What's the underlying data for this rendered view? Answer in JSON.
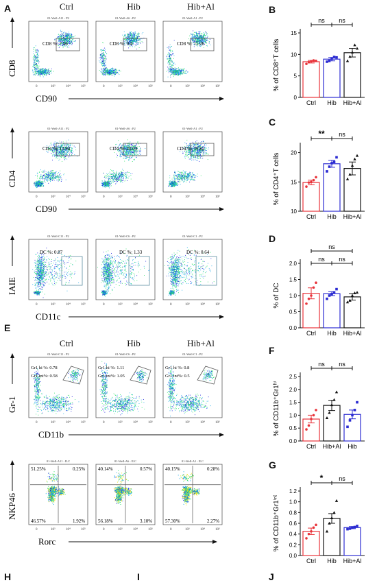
{
  "panels": {
    "A": "A",
    "B": "B",
    "C": "C",
    "D": "D",
    "E": "E",
    "F": "F",
    "G": "G",
    "H": "H",
    "I": "I",
    "J": "J"
  },
  "headers_top": [
    "Ctrl",
    "Hib",
    "Hib+Al"
  ],
  "headers_mid": [
    "Ctrl",
    "Hib",
    "Hib+Al"
  ],
  "flow_rows": [
    {
      "ylabel": "CD8",
      "xlabel": "CD90",
      "plots": [
        {
          "title": "01-Well-A11 : P2",
          "gate": "CD8 %: 7.56"
        },
        {
          "title": "01-Well-A6 : P2",
          "gate": "CD8 %: 9.4"
        },
        {
          "title": "01-Well-A1 : P2",
          "gate": "CD8 %: 11.26"
        }
      ]
    },
    {
      "ylabel": "CD4",
      "xlabel": "CD90",
      "plots": [
        {
          "title": "01-Well-A11 : P2",
          "gate": "CD4 %: 13.94"
        },
        {
          "title": "01-Well-A6 : P2",
          "gate": "CD4 %: 20.03"
        },
        {
          "title": "01-Well-A1 : P2",
          "gate": "CD4 %: 19.82"
        }
      ]
    },
    {
      "ylabel": "IAIE",
      "xlabel": "CD11c",
      "plots": [
        {
          "title": "01-Well-C11 : P2",
          "gate": "DC %: 0.87"
        },
        {
          "title": "01-Well-C6 : P2",
          "gate": "DC %: 1.33"
        },
        {
          "title": "01-Well-C1 : P2",
          "gate": "DC %: 0.64"
        }
      ]
    },
    {
      "ylabel": "Gr-1",
      "xlabel": "CD11b",
      "plots": [
        {
          "title": "01-Well-C11 : P2",
          "gate": "Gr1 hi %: 0.78",
          "gate2": "Gr1 int%: 0.58"
        },
        {
          "title": "01-Well-C6 : P2",
          "gate": "Gr1 hi %: 1.11",
          "gate2": "Gr1 int%: 1.05"
        },
        {
          "title": "01-Well-C1 : P2",
          "gate": "Gr1 hi %: 0.8",
          "gate2": "Gr1 int%: 0.5"
        }
      ]
    },
    {
      "ylabel": "NKP46",
      "xlabel": "Rorc",
      "plots": [
        {
          "title": "01-Well-A11 : ILC",
          "q": [
            "51.25%",
            "0.25%",
            "46.57%",
            "1.92%"
          ]
        },
        {
          "title": "01-Well-A6 : ILC",
          "q": [
            "40.14%",
            "0.57%",
            "56.18%",
            "3.10%"
          ]
        },
        {
          "title": "01-Well-A1 : ILC",
          "q": [
            "40.15%",
            "0.28%",
            "57.30%",
            "2.27%"
          ]
        }
      ]
    }
  ],
  "axis_ticks": [
    "0",
    "10³",
    "10⁴",
    "10⁵"
  ],
  "chart_data": [
    {
      "id": "B",
      "type": "bar",
      "categories": [
        "Ctrl",
        "Hib",
        "Hib+Al"
      ],
      "values": [
        8.3,
        8.9,
        10.4
      ],
      "errors": [
        0.3,
        0.4,
        1.0
      ],
      "points": [
        [
          7.8,
          8.2,
          8.4,
          8.6,
          8.5
        ],
        [
          8.3,
          8.5,
          9.0,
          9.4,
          9.3
        ],
        [
          8.5,
          9.5,
          10.5,
          12.2,
          11.4
        ]
      ],
      "ylabel": "% of  CD8⁺T cells",
      "ylim": [
        0,
        15
      ],
      "yticks": [
        0,
        5,
        10,
        15
      ],
      "sig": [
        {
          "from": 0,
          "to": 1,
          "label": "ns"
        },
        {
          "from": 1,
          "to": 2,
          "label": "ns"
        }
      ],
      "colors": [
        "#e8333a",
        "#2b2bd1",
        "#111111"
      ]
    },
    {
      "id": "C",
      "type": "bar",
      "categories": [
        "Ctrl",
        "Hib",
        "Hib+Al"
      ],
      "values": [
        14.9,
        18.1,
        17.3
      ],
      "errors": [
        0.4,
        0.6,
        1.1
      ],
      "points": [
        [
          14.2,
          14.9,
          15.0,
          15.3,
          15.8
        ],
        [
          16.8,
          17.6,
          18.2,
          18.4,
          19.2
        ],
        [
          15.5,
          16.3,
          17.8,
          18.9,
          19.5
        ]
      ],
      "ylabel": "% of  CD4⁺T cells",
      "ylim": [
        10,
        21
      ],
      "yticks": [
        10,
        15,
        20
      ],
      "sig": [
        {
          "from": 0,
          "to": 1,
          "label": "**"
        },
        {
          "from": 1,
          "to": 2,
          "label": "ns"
        }
      ],
      "colors": [
        "#e8333a",
        "#2b2bd1",
        "#111111"
      ]
    },
    {
      "id": "D",
      "type": "bar",
      "categories": [
        "Ctrl",
        "Hib",
        "Hib+Al"
      ],
      "values": [
        1.07,
        1.06,
        0.96
      ],
      "errors": [
        0.17,
        0.06,
        0.1
      ],
      "points": [
        [
          0.75,
          0.9,
          1.0,
          1.25,
          1.4
        ],
        [
          0.9,
          1.0,
          1.05,
          1.1,
          1.2
        ],
        [
          0.8,
          0.85,
          1.0,
          1.08,
          1.1
        ]
      ],
      "ylabel": "% of  DC",
      "ylim": [
        0,
        2.0
      ],
      "yticks": [
        0.0,
        0.5,
        1.0,
        1.5,
        2.0
      ],
      "sig": [
        {
          "from": 0,
          "to": 2,
          "label": "ns",
          "level": 2
        },
        {
          "from": 0,
          "to": 1,
          "label": "ns"
        },
        {
          "from": 1,
          "to": 2,
          "label": "ns"
        }
      ],
      "colors": [
        "#e8333a",
        "#2b2bd1",
        "#111111"
      ]
    },
    {
      "id": "F",
      "type": "bar",
      "categories": [
        "Ctrl",
        "Hib+Al",
        "Hib"
      ],
      "values": [
        0.85,
        1.38,
        1.03
      ],
      "errors": [
        0.15,
        0.2,
        0.17
      ],
      "points": [
        [
          0.45,
          0.6,
          0.85,
          1.0,
          1.2
        ],
        [
          0.9,
          1.1,
          1.4,
          1.6,
          1.9
        ],
        [
          0.55,
          0.8,
          1.0,
          1.2,
          1.5
        ]
      ],
      "ylabel": "% of  CD11b⁺Gr1ʰⁱ",
      "ylim": [
        0,
        2.5
      ],
      "yticks": [
        0.0,
        0.5,
        1.0,
        1.5,
        2.0,
        2.5
      ],
      "sig": [
        {
          "from": 0,
          "to": 1,
          "label": "ns"
        },
        {
          "from": 1,
          "to": 2,
          "label": "ns"
        }
      ],
      "colors": [
        "#e8333a",
        "#111111",
        "#2b2bd1"
      ]
    },
    {
      "id": "G",
      "type": "bar",
      "categories": [
        "Ctrl",
        "Hib",
        "Hib+Al"
      ],
      "values": [
        0.45,
        0.69,
        0.52
      ],
      "errors": [
        0.06,
        0.09,
        0.02
      ],
      "points": [
        [
          0.32,
          0.4,
          0.45,
          0.52,
          0.57
        ],
        [
          0.45,
          0.6,
          0.7,
          0.8,
          1.02
        ],
        [
          0.49,
          0.5,
          0.52,
          0.53,
          0.55
        ]
      ],
      "ylabel": "% of  CD11b⁺Gr1ⁱⁿᵗ",
      "ylim": [
        0,
        1.2
      ],
      "yticks": [
        0.0,
        0.2,
        0.4,
        0.6,
        0.8,
        1.0,
        1.2
      ],
      "sig": [
        {
          "from": 0,
          "to": 1,
          "label": "*"
        },
        {
          "from": 1,
          "to": 2,
          "label": "ns"
        }
      ],
      "colors": [
        "#e8333a",
        "#111111",
        "#2b2bd1"
      ]
    }
  ]
}
